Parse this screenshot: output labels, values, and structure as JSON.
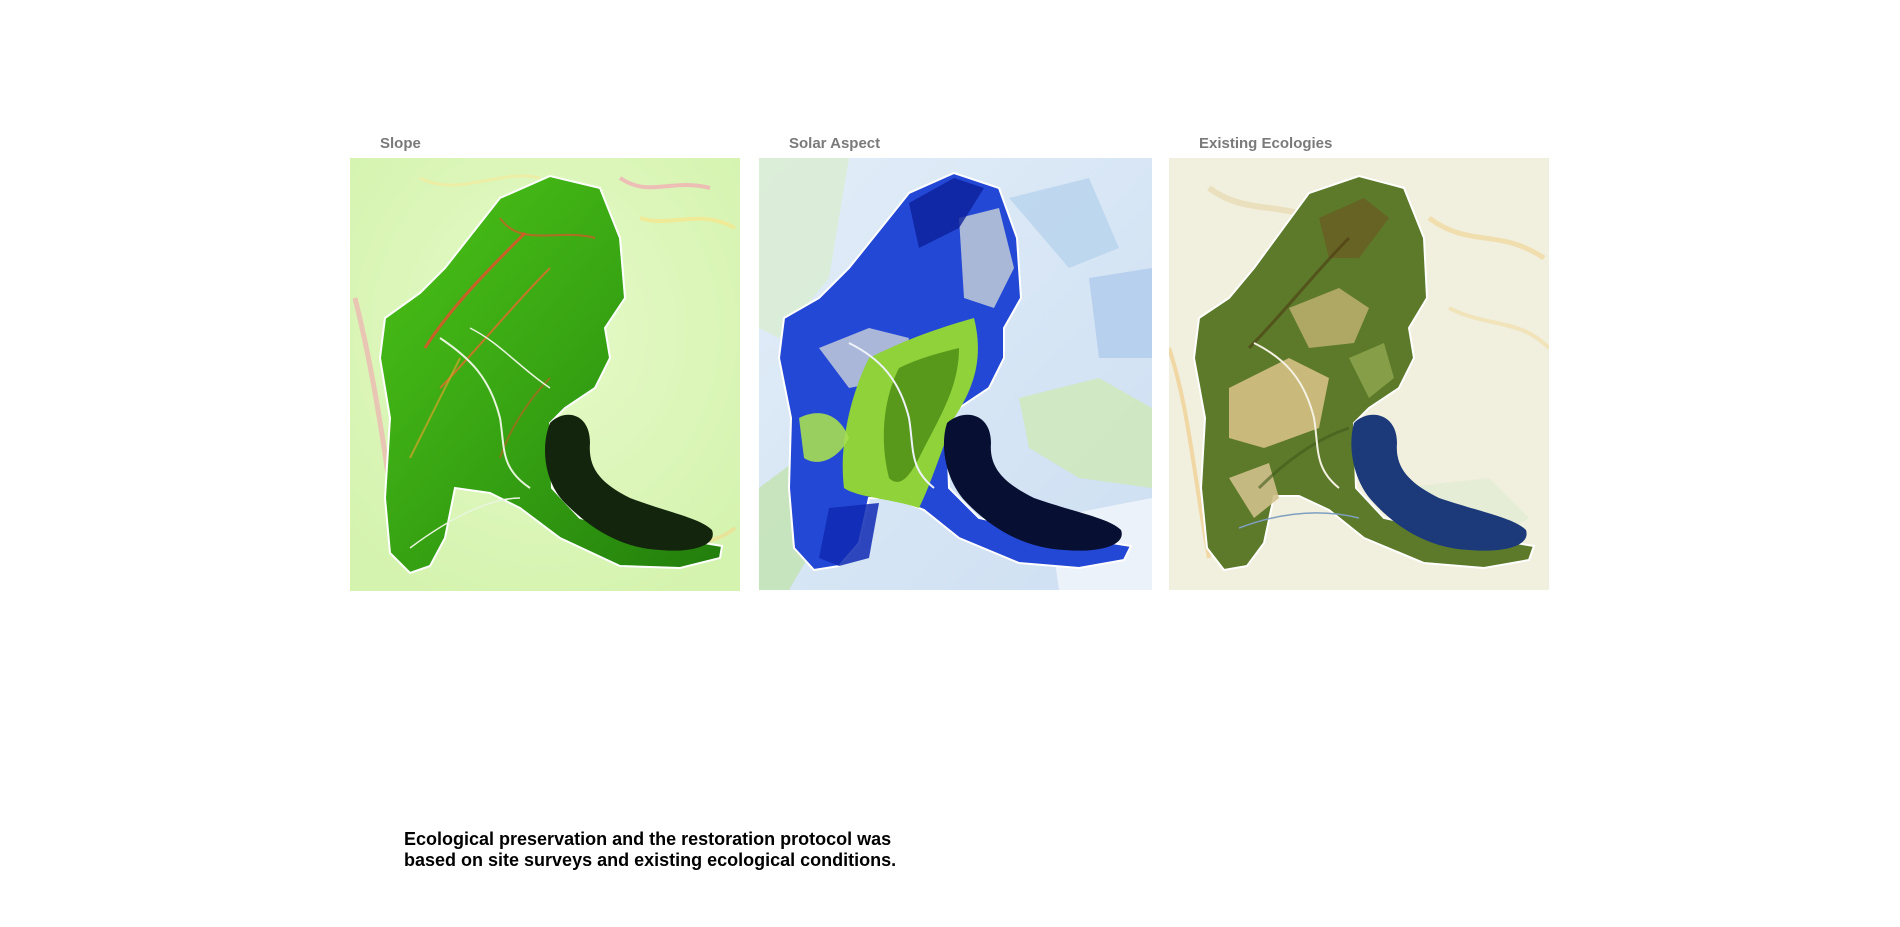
{
  "panels": [
    {
      "id": "slope",
      "title": "Slope"
    },
    {
      "id": "aspect",
      "title": "Solar Aspect"
    },
    {
      "id": "eco",
      "title": "Existing Ecologies"
    }
  ],
  "caption": {
    "line1": "Ecological preservation and the restoration protocol was",
    "line2": "based on site surveys and existing ecological conditions."
  },
  "colors": {
    "slope_bg": "#dff7c0",
    "slope_site": "#3fae12",
    "slope_steep": "#e0522a",
    "slope_water": "#13260d",
    "aspect_bg": "#d6e6f6",
    "aspect_north": "#1f3fcf",
    "aspect_south": "#8fd23a",
    "aspect_water": "#070f33",
    "eco_bg": "#f1efdd",
    "eco_forest": "#5c7a2a",
    "eco_field": "#c9b97a",
    "eco_water": "#1c3a7a"
  }
}
